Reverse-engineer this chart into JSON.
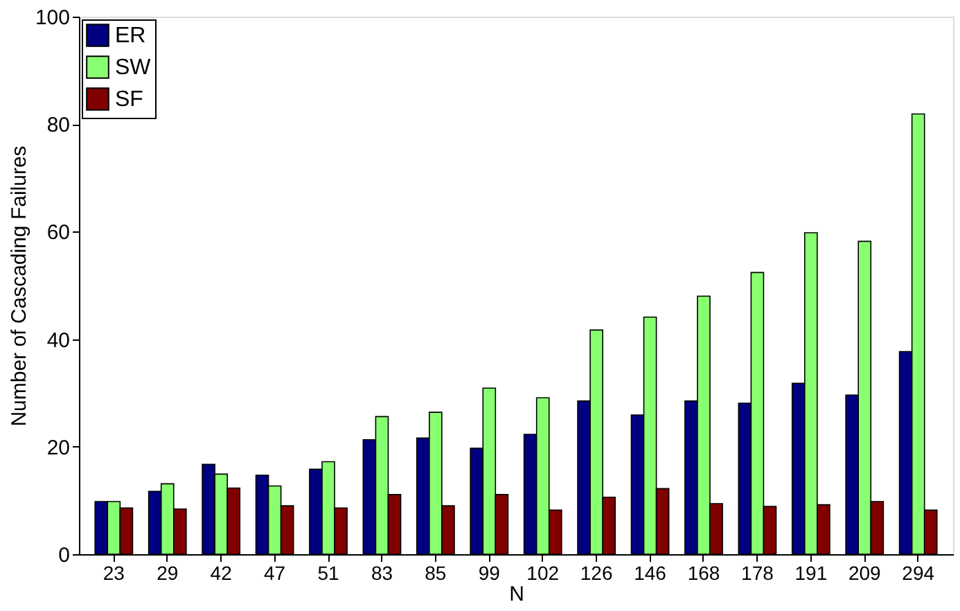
{
  "chart_data": {
    "type": "bar",
    "xlabel": "N",
    "ylabel": "Number of Cascading Failures",
    "categories": [
      "23",
      "29",
      "42",
      "47",
      "51",
      "83",
      "85",
      "99",
      "102",
      "126",
      "146",
      "168",
      "178",
      "191",
      "209",
      "294"
    ],
    "series": [
      {
        "name": "ER",
        "color": "#000080",
        "values": [
          9.8,
          11.7,
          16.7,
          14.7,
          15.8,
          21.3,
          21.6,
          19.7,
          22.3,
          28.5,
          25.9,
          28.5,
          28.1,
          31.8,
          29.6,
          37.7
        ]
      },
      {
        "name": "SW",
        "color": "#88ff70",
        "values": [
          9.8,
          13.1,
          14.9,
          12.7,
          17.2,
          25.6,
          26.4,
          30.9,
          29.1,
          41.7,
          44.1,
          48.0,
          52.4,
          59.8,
          58.2,
          81.9
        ]
      },
      {
        "name": "SF",
        "color": "#800000",
        "values": [
          8.6,
          8.4,
          12.3,
          9.0,
          8.6,
          11.1,
          9.0,
          11.1,
          8.2,
          10.6,
          12.2,
          9.4,
          8.9,
          9.2,
          9.8,
          8.2
        ]
      }
    ],
    "ylim": [
      0,
      100
    ],
    "yticks": [
      0,
      20,
      40,
      60,
      80,
      100
    ],
    "grid": false,
    "legend": "top left"
  }
}
